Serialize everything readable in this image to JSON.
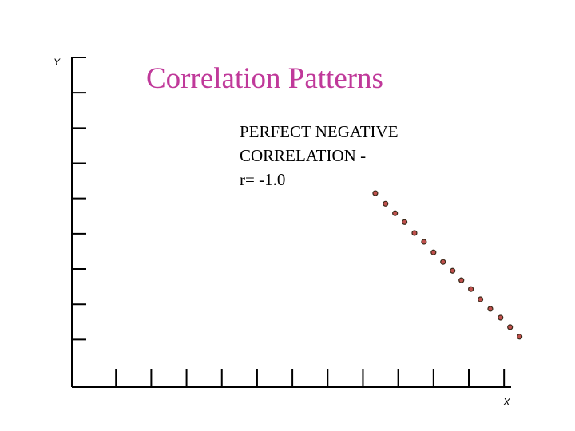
{
  "chart_data": {
    "type": "scatter",
    "title": "Correlation Patterns",
    "annotation": [
      "PERFECT NEGATIVE",
      "CORRELATION -",
      "r= -1.0"
    ],
    "xlabel": "X",
    "ylabel": "Y",
    "x": [
      8.35,
      8.64,
      8.91,
      9.18,
      9.46,
      9.73,
      10.0,
      10.27,
      10.54,
      10.79,
      11.06,
      11.33,
      11.61,
      11.9,
      12.17,
      12.44
    ],
    "y": [
      5.15,
      4.85,
      4.58,
      4.33,
      4.02,
      3.77,
      3.47,
      3.2,
      2.95,
      2.68,
      2.43,
      2.14,
      1.87,
      1.62,
      1.35,
      1.08
    ],
    "color": "#c0504d",
    "xlim": [
      -0.25,
      12.2
    ],
    "ylim": [
      -0.35,
      9
    ],
    "xticks": [
      1,
      2,
      3,
      4,
      5,
      6,
      7,
      8,
      9,
      10,
      11,
      12
    ],
    "yticks": [
      1,
      2,
      3,
      4,
      5,
      6,
      7,
      8,
      9
    ]
  }
}
